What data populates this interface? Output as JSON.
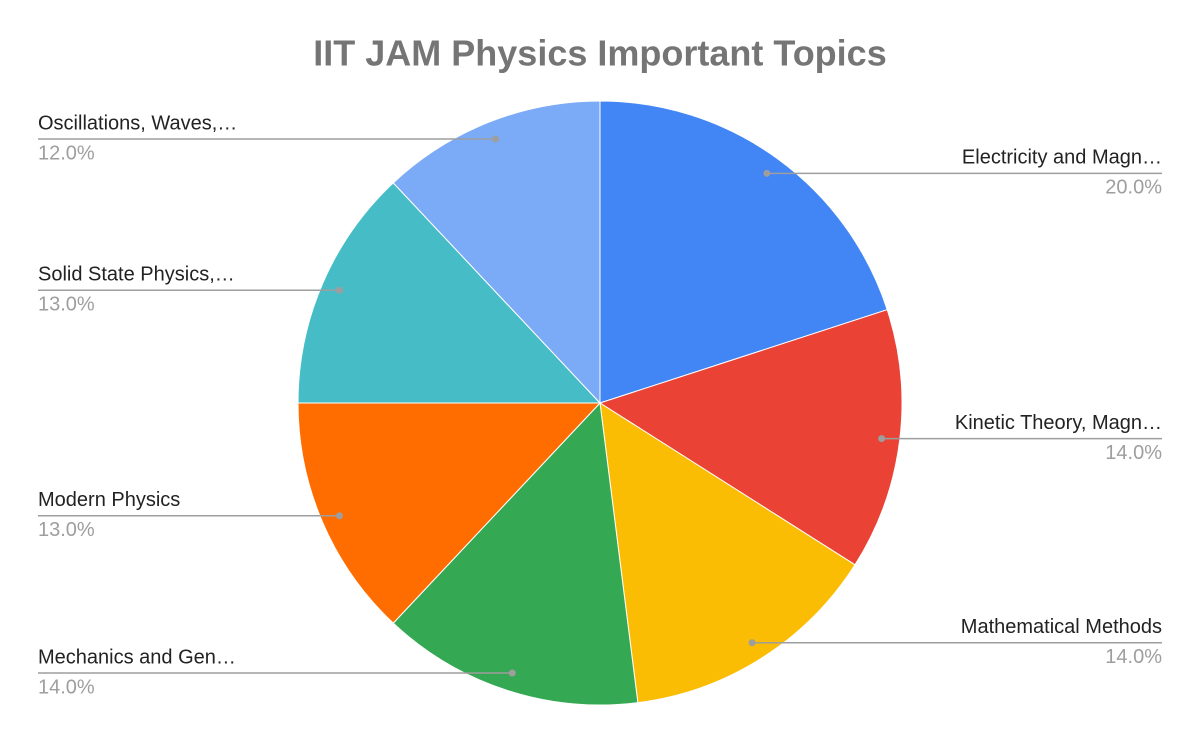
{
  "chart_data": {
    "type": "pie",
    "title": "IIT JAM Physics Important Topics",
    "categories": [
      "Electricity and Magn…",
      "Kinetic Theory, Magn…",
      "Mathematical Methods",
      "Mechanics and Gen…",
      "Modern Physics",
      "Solid State Physics,…",
      "Oscillations, Waves,…"
    ],
    "values": [
      20,
      14,
      14,
      14,
      13,
      13,
      12
    ],
    "value_labels": [
      "20.0%",
      "14.0%",
      "14.0%",
      "14.0%",
      "13.0%",
      "13.0%",
      "12.0%"
    ],
    "colors": [
      "#4285f4",
      "#ea4335",
      "#fbbc04",
      "#34a853",
      "#ff6d01",
      "#46bdc6",
      "#7baaf7"
    ]
  }
}
